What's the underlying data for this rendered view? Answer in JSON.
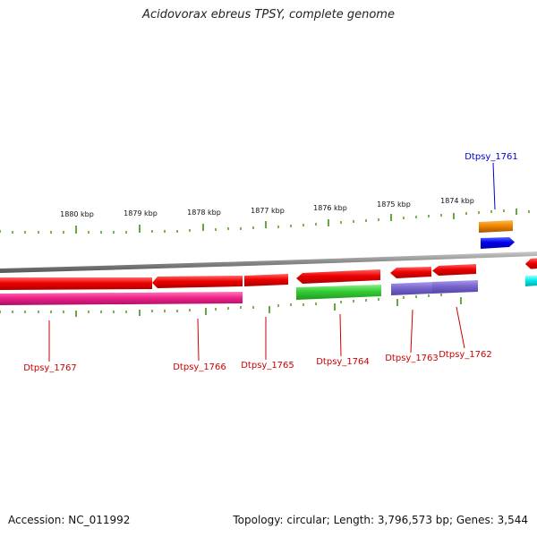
{
  "title": "Acidovorax ebreus TPSY, complete genome",
  "accession": "Accession: NC_011992",
  "stats": "Topology: circular; Length: 3,796,573 bp; Genes: 3,544",
  "kbp_labels": [
    "1880 kbp",
    "1879 kbp",
    "1878 kbp",
    "1877 kbp",
    "1876 kbp",
    "1875 kbp",
    "1874 kbp"
  ],
  "gene_labels": [
    "Dtpsy_1761",
    "Dtpsy_1762",
    "Dtpsy_1763",
    "Dtpsy_1764",
    "Dtpsy_1765",
    "Dtpsy_1766",
    "Dtpsy_1767"
  ],
  "colors": {
    "forward_label": "#0000cc",
    "reverse_label": "#cc0000",
    "tick": "#338800",
    "backbone": "#888888",
    "red_gene": "#ee0000",
    "magenta_gene": "#ee2288",
    "green_gene": "#33cc33",
    "purple_gene": "#7766cc",
    "orange_gene": "#ee8800",
    "blue_gene": "#0000ee",
    "cyan_gene": "#00eeee"
  }
}
